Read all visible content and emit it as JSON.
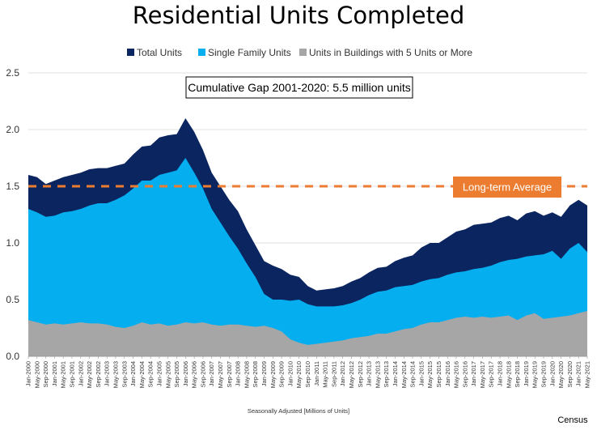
{
  "chart_data": {
    "type": "area",
    "title": "Residential Units Completed",
    "xlabel": "Seasonally Adjusted [Millions of Units]",
    "source": "Census",
    "ylim": [
      0,
      2.5
    ],
    "yticks": [
      "0.0",
      "0.5",
      "1.0",
      "1.5",
      "2.0",
      "2.5"
    ],
    "grid": "horizontal",
    "legend_placement": "top",
    "colors": {
      "total": "#0b2560",
      "single_family": "#04aeef",
      "five_plus": "#a6a6a6",
      "average": "#ec7d30"
    },
    "x_start": "Jan-2000",
    "x_end": "May-2021",
    "x_ticks": [
      "Jan-2000",
      "May-2000",
      "Sep-2000",
      "Jan-2001",
      "May-2001",
      "Sep-2001",
      "Jan-2002",
      "May-2002",
      "Sep-2002",
      "Jan-2003",
      "May-2003",
      "Sep-2003",
      "Jan-2004",
      "May-2004",
      "Sep-2004",
      "Jan-2005",
      "May-2005",
      "Sep-2005",
      "Jan-2006",
      "May-2006",
      "Sep-2006",
      "Jan-2007",
      "May-2007",
      "Sep-2007",
      "Jan-2008",
      "May-2008",
      "Sep-2008",
      "Jan-2009",
      "May-2009",
      "Sep-2009",
      "Jan-2010",
      "May-2010",
      "Sep-2010",
      "Jan-2011",
      "May-2011",
      "Sep-2011",
      "Jan-2012",
      "May-2012",
      "Sep-2012",
      "Jan-2013",
      "May-2013",
      "Sep-2013",
      "Jan-2014",
      "May-2014",
      "Sep-2014",
      "Jan-2015",
      "May-2015",
      "Sep-2015",
      "Jan-2016",
      "May-2016",
      "Sep-2016",
      "Jan-2017",
      "May-2017",
      "Sep-2017",
      "Jan-2018",
      "May-2018",
      "Sep-2018",
      "Jan-2019",
      "May-2019",
      "Sep-2019",
      "Jan-2020",
      "May-2020",
      "Sep-2020",
      "Jan-2021",
      "May-2021"
    ],
    "series": [
      {
        "name": "Total Units",
        "key": "total",
        "points": [
          [
            "Jan-2000",
            1.6
          ],
          [
            "May-2000",
            1.58
          ],
          [
            "Sep-2000",
            1.52
          ],
          [
            "Jan-2001",
            1.55
          ],
          [
            "May-2001",
            1.58
          ],
          [
            "Sep-2001",
            1.6
          ],
          [
            "Jan-2002",
            1.62
          ],
          [
            "May-2002",
            1.65
          ],
          [
            "Sep-2002",
            1.66
          ],
          [
            "Jan-2003",
            1.66
          ],
          [
            "May-2003",
            1.68
          ],
          [
            "Sep-2003",
            1.7
          ],
          [
            "Jan-2004",
            1.78
          ],
          [
            "May-2004",
            1.85
          ],
          [
            "Sep-2004",
            1.86
          ],
          [
            "Jan-2005",
            1.93
          ],
          [
            "May-2005",
            1.95
          ],
          [
            "Sep-2005",
            1.96
          ],
          [
            "Jan-2006",
            2.1
          ],
          [
            "May-2006",
            1.98
          ],
          [
            "Sep-2006",
            1.82
          ],
          [
            "Jan-2007",
            1.62
          ],
          [
            "May-2007",
            1.5
          ],
          [
            "Sep-2007",
            1.38
          ],
          [
            "Jan-2008",
            1.28
          ],
          [
            "May-2008",
            1.12
          ],
          [
            "Sep-2008",
            0.98
          ],
          [
            "Jan-2009",
            0.84
          ],
          [
            "May-2009",
            0.8
          ],
          [
            "Sep-2009",
            0.77
          ],
          [
            "Jan-2010",
            0.72
          ],
          [
            "May-2010",
            0.7
          ],
          [
            "Sep-2010",
            0.62
          ],
          [
            "Jan-2011",
            0.58
          ],
          [
            "May-2011",
            0.59
          ],
          [
            "Sep-2011",
            0.6
          ],
          [
            "Jan-2012",
            0.62
          ],
          [
            "May-2012",
            0.66
          ],
          [
            "Sep-2012",
            0.69
          ],
          [
            "Jan-2013",
            0.74
          ],
          [
            "May-2013",
            0.78
          ],
          [
            "Sep-2013",
            0.79
          ],
          [
            "Jan-2014",
            0.84
          ],
          [
            "May-2014",
            0.87
          ],
          [
            "Sep-2014",
            0.89
          ],
          [
            "Jan-2015",
            0.96
          ],
          [
            "May-2015",
            1.0
          ],
          [
            "Sep-2015",
            1.0
          ],
          [
            "Jan-2016",
            1.05
          ],
          [
            "May-2016",
            1.1
          ],
          [
            "Sep-2016",
            1.12
          ],
          [
            "Jan-2017",
            1.16
          ],
          [
            "May-2017",
            1.17
          ],
          [
            "Sep-2017",
            1.18
          ],
          [
            "Jan-2018",
            1.22
          ],
          [
            "May-2018",
            1.24
          ],
          [
            "Sep-2018",
            1.2
          ],
          [
            "Jan-2019",
            1.26
          ],
          [
            "May-2019",
            1.28
          ],
          [
            "Sep-2019",
            1.24
          ],
          [
            "Jan-2020",
            1.27
          ],
          [
            "May-2020",
            1.23
          ],
          [
            "Sep-2020",
            1.33
          ],
          [
            "Jan-2021",
            1.38
          ],
          [
            "May-2021",
            1.33
          ]
        ]
      },
      {
        "name": "Single Family Units",
        "key": "single_family",
        "points": [
          [
            "Jan-2000",
            1.3
          ],
          [
            "May-2000",
            1.27
          ],
          [
            "Sep-2000",
            1.23
          ],
          [
            "Jan-2001",
            1.24
          ],
          [
            "May-2001",
            1.27
          ],
          [
            "Sep-2001",
            1.28
          ],
          [
            "Jan-2002",
            1.3
          ],
          [
            "May-2002",
            1.33
          ],
          [
            "Sep-2002",
            1.35
          ],
          [
            "Jan-2003",
            1.35
          ],
          [
            "May-2003",
            1.38
          ],
          [
            "Sep-2003",
            1.42
          ],
          [
            "Jan-2004",
            1.48
          ],
          [
            "May-2004",
            1.55
          ],
          [
            "Sep-2004",
            1.55
          ],
          [
            "Jan-2005",
            1.6
          ],
          [
            "May-2005",
            1.62
          ],
          [
            "Sep-2005",
            1.64
          ],
          [
            "Jan-2006",
            1.75
          ],
          [
            "May-2006",
            1.62
          ],
          [
            "Sep-2006",
            1.48
          ],
          [
            "Jan-2007",
            1.3
          ],
          [
            "May-2007",
            1.18
          ],
          [
            "Sep-2007",
            1.06
          ],
          [
            "Jan-2008",
            0.95
          ],
          [
            "May-2008",
            0.82
          ],
          [
            "Sep-2008",
            0.7
          ],
          [
            "Jan-2009",
            0.55
          ],
          [
            "May-2009",
            0.5
          ],
          [
            "Sep-2009",
            0.5
          ],
          [
            "Jan-2010",
            0.49
          ],
          [
            "May-2010",
            0.5
          ],
          [
            "Sep-2010",
            0.46
          ],
          [
            "Jan-2011",
            0.44
          ],
          [
            "May-2011",
            0.44
          ],
          [
            "Sep-2011",
            0.44
          ],
          [
            "Jan-2012",
            0.45
          ],
          [
            "May-2012",
            0.47
          ],
          [
            "Sep-2012",
            0.5
          ],
          [
            "Jan-2013",
            0.54
          ],
          [
            "May-2013",
            0.57
          ],
          [
            "Sep-2013",
            0.58
          ],
          [
            "Jan-2014",
            0.61
          ],
          [
            "May-2014",
            0.62
          ],
          [
            "Sep-2014",
            0.63
          ],
          [
            "Jan-2015",
            0.66
          ],
          [
            "May-2015",
            0.68
          ],
          [
            "Sep-2015",
            0.69
          ],
          [
            "Jan-2016",
            0.72
          ],
          [
            "May-2016",
            0.74
          ],
          [
            "Sep-2016",
            0.75
          ],
          [
            "Jan-2017",
            0.77
          ],
          [
            "May-2017",
            0.78
          ],
          [
            "Sep-2017",
            0.8
          ],
          [
            "Jan-2018",
            0.83
          ],
          [
            "May-2018",
            0.85
          ],
          [
            "Sep-2018",
            0.86
          ],
          [
            "Jan-2019",
            0.88
          ],
          [
            "May-2019",
            0.89
          ],
          [
            "Sep-2019",
            0.9
          ],
          [
            "Jan-2020",
            0.93
          ],
          [
            "May-2020",
            0.86
          ],
          [
            "Sep-2020",
            0.95
          ],
          [
            "Jan-2021",
            1.0
          ],
          [
            "May-2021",
            0.92
          ]
        ]
      },
      {
        "name": "Units in Buildings with 5 Units or More",
        "key": "five_plus",
        "points": [
          [
            "Jan-2000",
            0.32
          ],
          [
            "May-2000",
            0.3
          ],
          [
            "Sep-2000",
            0.28
          ],
          [
            "Jan-2001",
            0.29
          ],
          [
            "May-2001",
            0.28
          ],
          [
            "Sep-2001",
            0.29
          ],
          [
            "Jan-2002",
            0.3
          ],
          [
            "May-2002",
            0.29
          ],
          [
            "Sep-2002",
            0.29
          ],
          [
            "Jan-2003",
            0.28
          ],
          [
            "May-2003",
            0.26
          ],
          [
            "Sep-2003",
            0.25
          ],
          [
            "Jan-2004",
            0.27
          ],
          [
            "May-2004",
            0.3
          ],
          [
            "Sep-2004",
            0.28
          ],
          [
            "Jan-2005",
            0.29
          ],
          [
            "May-2005",
            0.27
          ],
          [
            "Sep-2005",
            0.28
          ],
          [
            "Jan-2006",
            0.3
          ],
          [
            "May-2006",
            0.29
          ],
          [
            "Sep-2006",
            0.3
          ],
          [
            "Jan-2007",
            0.28
          ],
          [
            "May-2007",
            0.27
          ],
          [
            "Sep-2007",
            0.28
          ],
          [
            "Jan-2008",
            0.28
          ],
          [
            "May-2008",
            0.27
          ],
          [
            "Sep-2008",
            0.26
          ],
          [
            "Jan-2009",
            0.27
          ],
          [
            "May-2009",
            0.25
          ],
          [
            "Sep-2009",
            0.22
          ],
          [
            "Jan-2010",
            0.15
          ],
          [
            "May-2010",
            0.12
          ],
          [
            "Sep-2010",
            0.1
          ],
          [
            "Jan-2011",
            0.11
          ],
          [
            "May-2011",
            0.12
          ],
          [
            "Sep-2011",
            0.13
          ],
          [
            "Jan-2012",
            0.14
          ],
          [
            "May-2012",
            0.16
          ],
          [
            "Sep-2012",
            0.17
          ],
          [
            "Jan-2013",
            0.18
          ],
          [
            "May-2013",
            0.2
          ],
          [
            "Sep-2013",
            0.2
          ],
          [
            "Jan-2014",
            0.22
          ],
          [
            "May-2014",
            0.24
          ],
          [
            "Sep-2014",
            0.25
          ],
          [
            "Jan-2015",
            0.28
          ],
          [
            "May-2015",
            0.3
          ],
          [
            "Sep-2015",
            0.3
          ],
          [
            "Jan-2016",
            0.32
          ],
          [
            "May-2016",
            0.34
          ],
          [
            "Sep-2016",
            0.35
          ],
          [
            "Jan-2017",
            0.34
          ],
          [
            "May-2017",
            0.35
          ],
          [
            "Sep-2017",
            0.34
          ],
          [
            "Jan-2018",
            0.35
          ],
          [
            "May-2018",
            0.36
          ],
          [
            "Sep-2018",
            0.32
          ],
          [
            "Jan-2019",
            0.36
          ],
          [
            "May-2019",
            0.38
          ],
          [
            "Sep-2019",
            0.33
          ],
          [
            "Jan-2020",
            0.34
          ],
          [
            "May-2020",
            0.35
          ],
          [
            "Sep-2020",
            0.36
          ],
          [
            "Jan-2021",
            0.38
          ],
          [
            "May-2021",
            0.4
          ]
        ]
      }
    ],
    "long_term_average": {
      "value": 1.5,
      "label": "Long-term Average"
    },
    "annotations": [
      {
        "text": "Cumulative Gap 2001-2020: 5.5 million units"
      }
    ]
  }
}
